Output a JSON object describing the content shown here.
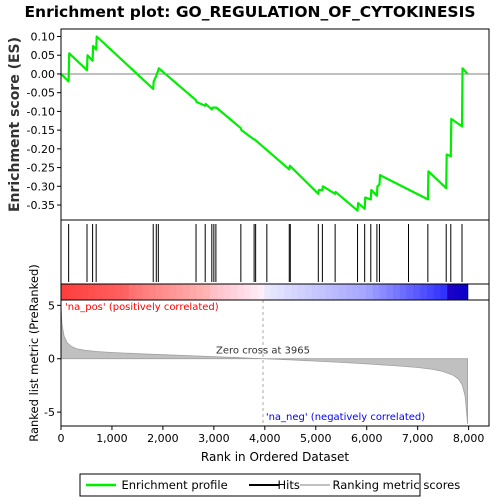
{
  "title": "Enrichment plot: GO_REGULATION_OF_CYTOKINESIS",
  "colors": {
    "enrichment_line": "#00ee00",
    "hits": "#000000",
    "ranking_fill": "#c0c0c0",
    "pos_label": "#ff0000",
    "neg_label": "#0000ff"
  },
  "chart_data": [
    {
      "panel": "enrichment",
      "type": "line",
      "ylabel": "Enrichment score (ES)",
      "ylim": [
        -0.39,
        0.12
      ],
      "yticks": [
        0.1,
        0.05,
        0.0,
        -0.05,
        -0.1,
        -0.15,
        -0.2,
        -0.25,
        -0.3,
        -0.35
      ],
      "ytick_labels": [
        "0.10",
        "0.05",
        "0.00",
        "-0.05",
        "-0.10",
        "-0.15",
        "-0.20",
        "-0.25",
        "-0.30",
        "-0.35"
      ],
      "zero_line": 0.0,
      "x": [
        0,
        150,
        160,
        510,
        520,
        620,
        630,
        690,
        700,
        1810,
        1820,
        1870,
        1880,
        1910,
        1920,
        2650,
        2660,
        2830,
        2840,
        2960,
        2970,
        3000,
        3010,
        3040,
        3050,
        3530,
        3540,
        3790,
        3800,
        4480,
        4490,
        5050,
        5060,
        5130,
        5140,
        5380,
        5390,
        5820,
        5830,
        5960,
        5970,
        6080,
        6090,
        6200,
        6210,
        6250,
        6260,
        7200,
        7210,
        7560,
        7570,
        7650,
        7660,
        7870,
        7880,
        7980
      ],
      "y": [
        0.0,
        -0.02,
        0.055,
        0.01,
        0.05,
        0.035,
        0.075,
        0.065,
        0.1,
        -0.04,
        -0.02,
        -0.005,
        0.0,
        0.01,
        0.015,
        -0.07,
        -0.075,
        -0.085,
        -0.08,
        -0.095,
        -0.09,
        -0.09,
        -0.09,
        -0.09,
        -0.09,
        -0.145,
        -0.15,
        -0.175,
        -0.175,
        -0.255,
        -0.245,
        -0.32,
        -0.31,
        -0.31,
        -0.3,
        -0.32,
        -0.315,
        -0.365,
        -0.345,
        -0.36,
        -0.33,
        -0.335,
        -0.31,
        -0.325,
        -0.3,
        -0.295,
        -0.27,
        -0.335,
        -0.26,
        -0.305,
        -0.215,
        -0.22,
        -0.12,
        -0.14,
        0.015,
        0.0
      ],
      "series_name": "Enrichment profile"
    },
    {
      "panel": "hits",
      "type": "scatter",
      "series_name": "Hits",
      "positions": [
        150,
        510,
        620,
        690,
        1810,
        1870,
        1910,
        2650,
        2830,
        2960,
        3000,
        3040,
        3530,
        3790,
        3820,
        4040,
        4480,
        4500,
        5050,
        5130,
        5380,
        5820,
        5960,
        6080,
        6200,
        6250,
        6820,
        7200,
        7560,
        7650,
        7870
      ]
    },
    {
      "panel": "ranking",
      "type": "area",
      "series_name": "Ranking metric scores",
      "ylabel": "Ranked list metric (PreRanked)",
      "xlabel": "Rank in Ordered Dataset",
      "ylim": [
        -6.3,
        5.5
      ],
      "yticks": [
        5,
        0,
        -5
      ],
      "ytick_labels": [
        "5",
        "0",
        "-5"
      ],
      "xlim": [
        0,
        8400
      ],
      "xticks": [
        0,
        1000,
        2000,
        3000,
        4000,
        5000,
        6000,
        7000,
        8000
      ],
      "xtick_labels": [
        "0",
        "1,000",
        "2,000",
        "3,000",
        "4,000",
        "5,000",
        "6,000",
        "7,000",
        "8,000"
      ],
      "n_genes": 7980,
      "zero_cross": 3965,
      "zero_cross_label": "Zero cross at 3965",
      "pos_label": "'na_pos' (positively correlated)",
      "neg_label": "'na_neg' (negatively correlated)",
      "x": [
        0,
        20,
        60,
        120,
        200,
        300,
        450,
        700,
        1000,
        1500,
        2000,
        2500,
        3000,
        3500,
        3965,
        4500,
        5000,
        5500,
        6000,
        6500,
        7000,
        7300,
        7500,
        7700,
        7800,
        7880,
        7930,
        7960,
        7980
      ],
      "y": [
        5.0,
        3.2,
        2.1,
        1.5,
        1.15,
        0.95,
        0.8,
        0.68,
        0.58,
        0.47,
        0.38,
        0.29,
        0.2,
        0.1,
        0.0,
        -0.1,
        -0.22,
        -0.34,
        -0.48,
        -0.63,
        -0.82,
        -1.0,
        -1.2,
        -1.55,
        -1.9,
        -2.5,
        -3.5,
        -5.0,
        -6.1
      ]
    }
  ],
  "legend": {
    "items": [
      {
        "label": "Enrichment profile",
        "color": "#00ee00"
      },
      {
        "label": "Hits",
        "color": "#000000"
      },
      {
        "label": "Ranking metric scores",
        "color": "#c0c0c0"
      }
    ]
  }
}
